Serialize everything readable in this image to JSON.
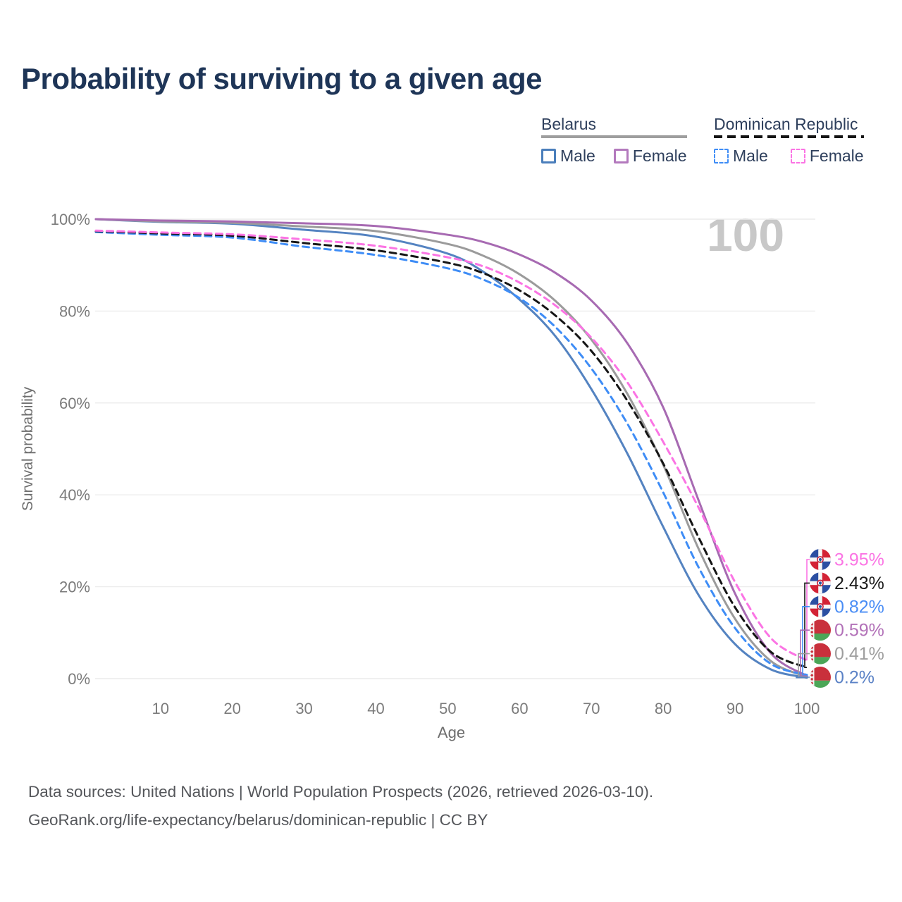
{
  "title": "Probability of surviving to a given age",
  "watermark": "100",
  "legend": {
    "groups": [
      {
        "name": "Belarus",
        "items": [
          {
            "label": "Male"
          },
          {
            "label": "Female"
          }
        ]
      },
      {
        "name": "Dominican Republic",
        "items": [
          {
            "label": "Male"
          },
          {
            "label": "Female"
          }
        ]
      }
    ]
  },
  "chart_data": {
    "type": "line",
    "title": "Probability of surviving to a given age",
    "xlabel": "Age",
    "ylabel": "Survival probability",
    "xlim": [
      1,
      100
    ],
    "ylim": [
      0,
      100
    ],
    "xticks": [
      10,
      20,
      30,
      40,
      50,
      60,
      70,
      80,
      90,
      100
    ],
    "yticks": [
      0,
      20,
      40,
      60,
      80,
      100
    ],
    "ytick_suffix": "%",
    "grid": "horizontal",
    "x": [
      1,
      10,
      20,
      30,
      40,
      50,
      55,
      60,
      65,
      70,
      75,
      80,
      85,
      90,
      95,
      100
    ],
    "series": [
      {
        "name": "Belarus Male",
        "country": "Belarus",
        "sex": "male",
        "color": "#5483c1",
        "dashed": false,
        "values": [
          100,
          99.4,
          99.0,
          97.7,
          96.2,
          92.5,
          88.5,
          82.5,
          74.5,
          63.0,
          49.0,
          33.0,
          18.0,
          7.5,
          2.0,
          0.2
        ]
      },
      {
        "name": "Belarus Average",
        "country": "Belarus",
        "sex": "both",
        "color": "#9b9b9b",
        "dashed": false,
        "values": [
          100,
          99.5,
          99.2,
          98.4,
          97.4,
          94.6,
          92.0,
          88.0,
          82.2,
          73.8,
          62.0,
          46.5,
          28.0,
          13.0,
          3.8,
          0.41
        ]
      },
      {
        "name": "Belarus Female",
        "country": "Belarus",
        "sex": "female",
        "color": "#a76ab2",
        "dashed": false,
        "values": [
          100,
          99.7,
          99.5,
          99.1,
          98.5,
          96.6,
          95.0,
          92.3,
          88.3,
          82.3,
          73.0,
          59.0,
          38.5,
          18.5,
          5.5,
          0.59
        ]
      },
      {
        "name": "Dominican Republic Male",
        "country": "Dominican Republic",
        "sex": "male",
        "color": "#3f8df6",
        "dashed": true,
        "values": [
          97.2,
          96.6,
          96.0,
          94.0,
          92.2,
          89.3,
          86.8,
          82.8,
          76.5,
          67.5,
          55.5,
          40.5,
          24.0,
          11.0,
          3.2,
          0.82
        ]
      },
      {
        "name": "Dominican Republic Average",
        "country": "Dominican Republic",
        "sex": "both",
        "color": "#151515",
        "dashed": true,
        "values": [
          97.4,
          96.9,
          96.4,
          94.8,
          93.2,
          90.5,
          88.2,
          84.5,
          79.0,
          71.3,
          60.5,
          46.8,
          30.5,
          15.5,
          5.8,
          2.43
        ]
      },
      {
        "name": "Dominican Republic Female",
        "country": "Dominican Republic",
        "sex": "female",
        "color": "#fb74e4",
        "dashed": true,
        "values": [
          97.5,
          97.1,
          96.7,
          95.6,
          94.2,
          91.7,
          89.7,
          86.2,
          81.2,
          74.2,
          64.5,
          51.5,
          37.0,
          21.0,
          8.8,
          3.95
        ]
      }
    ]
  },
  "end_labels": [
    {
      "series": "Dominican Republic Female",
      "value": "3.95%",
      "color": "#fb74e4",
      "flag": "dominican-republic"
    },
    {
      "series": "Dominican Republic Average",
      "value": "2.43%",
      "color": "#1a1a1a",
      "flag": "dominican-republic"
    },
    {
      "series": "Dominican Republic Male",
      "value": "0.82%",
      "color": "#4a8df5",
      "flag": "dominican-republic"
    },
    {
      "series": "Belarus Female",
      "value": "0.59%",
      "color": "#b271b8",
      "flag": "belarus"
    },
    {
      "series": "Belarus Average",
      "value": "0.41%",
      "color": "#9e9e9e",
      "flag": "belarus"
    },
    {
      "series": "Belarus Male",
      "value": "0.2%",
      "color": "#5b82c6",
      "flag": "belarus"
    }
  ],
  "caption": {
    "line1": "Data sources: United Nations | World Population Prospects (2026, retrieved 2026-03-10).",
    "line2": "GeoRank.org/life-expectancy/belarus/dominican-republic | CC BY"
  },
  "colors": {
    "title": "#1e3557",
    "watermark": "#c8c8c8",
    "grid": "#ececec",
    "tick_text": "#7b7b7b",
    "axis_label": "#6e6e6e"
  }
}
